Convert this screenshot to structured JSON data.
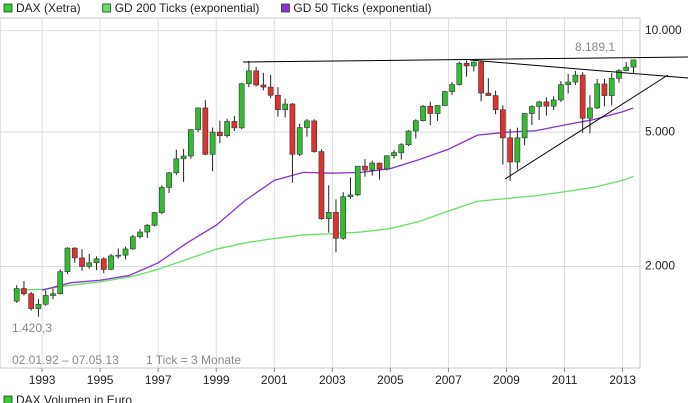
{
  "chart_data": {
    "type": "candlestick",
    "scale": "log",
    "grid": true,
    "xlim": [
      1991.55,
      2013.6
    ],
    "xticks": [
      1993,
      1995,
      1997,
      1999,
      2001,
      2003,
      2005,
      2007,
      2009,
      2011,
      2013
    ],
    "ylim": [
      1000,
      10900
    ],
    "yticks": [
      {
        "value": 2000,
        "label": "2.000"
      },
      {
        "value": 5000,
        "label": "5.000"
      },
      {
        "value": 10000,
        "label": "10.000"
      }
    ],
    "annotations": {
      "last": "8.189,1",
      "low": "1.420,3",
      "range": "02.01.92 – 07.05.13",
      "tick": "1 Tick = 3 Monate"
    },
    "footer_legend": {
      "name": "DAX Volumen in Euro",
      "color": "#33cc33"
    },
    "x": [
      1992.125,
      1992.375,
      1992.625,
      1992.875,
      1993.125,
      1993.375,
      1993.625,
      1993.875,
      1994.125,
      1994.375,
      1994.625,
      1994.875,
      1995.125,
      1995.375,
      1995.625,
      1995.875,
      1996.125,
      1996.375,
      1996.625,
      1996.875,
      1997.125,
      1997.375,
      1997.625,
      1997.875,
      1998.125,
      1998.375,
      1998.625,
      1998.875,
      1999.125,
      1999.375,
      1999.625,
      1999.875,
      2000.125,
      2000.375,
      2000.625,
      2000.875,
      2001.125,
      2001.375,
      2001.625,
      2001.875,
      2002.125,
      2002.375,
      2002.625,
      2002.875,
      2003.125,
      2003.375,
      2003.625,
      2003.875,
      2004.125,
      2004.375,
      2004.625,
      2004.875,
      2005.125,
      2005.375,
      2005.625,
      2005.875,
      2006.125,
      2006.375,
      2006.625,
      2006.875,
      2007.125,
      2007.375,
      2007.625,
      2007.875,
      2008.125,
      2008.375,
      2008.625,
      2008.875,
      2009.125,
      2009.375,
      2009.625,
      2009.875,
      2010.125,
      2010.375,
      2010.625,
      2010.875,
      2011.125,
      2011.375,
      2011.625,
      2011.875,
      2012.125,
      2012.375,
      2012.625,
      2012.875,
      2013.125,
      2013.375
    ],
    "series": [
      {
        "name": "DAX (Xetra)",
        "color": "#33cc33",
        "up_color": "#33bb33",
        "down_color": "#dd3333",
        "open": [
          1578,
          1720,
          1660,
          1500,
          1545,
          1640,
          1660,
          1930,
          2267,
          2120,
          2000,
          2050,
          2107,
          1960,
          2150,
          2160,
          2254,
          2450,
          2530,
          2650,
          2889,
          3430,
          3790,
          4170,
          4250,
          5090,
          5900,
          4300,
          5002,
          4880,
          5380,
          5150,
          6958,
          7600,
          6900,
          6800,
          6434,
          5830,
          6060,
          4300,
          5160,
          5400,
          4380,
          2770,
          2893,
          2424,
          3220,
          3260,
          3965,
          3860,
          4050,
          3890,
          4256,
          4350,
          4590,
          5040,
          5408,
          5970,
          5680,
          6000,
          6597,
          6920,
          8000,
          7860,
          8067,
          6530,
          6420,
          5830,
          4810,
          4080,
          4810,
          5680,
          5957,
          6150,
          5970,
          6230,
          6914,
          7040,
          7380,
          5500,
          5898,
          6950,
          6420,
          7220,
          7612,
          7795
        ],
        "high": [
          1760,
          1810,
          1680,
          1600,
          1700,
          1720,
          1960,
          2280,
          2280,
          2250,
          2180,
          2140,
          2130,
          2180,
          2260,
          2290,
          2480,
          2580,
          2670,
          2900,
          3480,
          3810,
          4440,
          4460,
          5100,
          5910,
          6220,
          5160,
          5410,
          5480,
          5580,
          7000,
          8136,
          7810,
          7490,
          7400,
          6800,
          6290,
          6100,
          5300,
          5470,
          5460,
          4450,
          3480,
          3160,
          3320,
          3670,
          3970,
          4160,
          4120,
          4060,
          4270,
          4430,
          4640,
          5070,
          5460,
          6020,
          6160,
          6010,
          6630,
          7040,
          8090,
          8151,
          8110,
          8100,
          7230,
          6640,
          6000,
          5110,
          5160,
          5700,
          6010,
          6190,
          6340,
          6390,
          7090,
          7440,
          7600,
          7530,
          6430,
          7190,
          7200,
          7480,
          7680,
          8070,
          8189.1
        ],
        "low": [
          1560,
          1640,
          1480,
          1420.3,
          1530,
          1600,
          1650,
          1900,
          2050,
          1940,
          1970,
          1950,
          1910,
          1950,
          2110,
          2100,
          2240,
          2420,
          2430,
          2630,
          2860,
          3300,
          3730,
          3560,
          4170,
          5000,
          4270,
          3830,
          4640,
          4820,
          5040,
          5110,
          6800,
          6830,
          6650,
          6300,
          5560,
          5530,
          3540,
          4250,
          4850,
          4350,
          2750,
          2520,
          2203,
          2400,
          3170,
          3230,
          3690,
          3720,
          3620,
          3850,
          4180,
          4150,
          4550,
          4790,
          5380,
          5240,
          5400,
          5970,
          6440,
          6880,
          7300,
          7570,
          6170,
          6420,
          5650,
          4010,
          3588,
          3870,
          4570,
          5250,
          5430,
          5600,
          5820,
          6150,
          6510,
          6900,
          4970,
          4960,
          5860,
          5970,
          6000,
          7010,
          7580,
          7450
        ],
        "close": [
          1720,
          1660,
          1500,
          1545,
          1640,
          1660,
          1930,
          2267,
          2120,
          2000,
          2050,
          2107,
          1960,
          2150,
          2160,
          2254,
          2450,
          2530,
          2650,
          2889,
          3430,
          3790,
          4170,
          4250,
          5090,
          5900,
          4300,
          5002,
          4880,
          5380,
          5150,
          6958,
          7600,
          6900,
          6800,
          6434,
          5830,
          6060,
          4300,
          5160,
          5400,
          4380,
          2770,
          2893,
          2424,
          3220,
          3260,
          3965,
          3860,
          4050,
          3890,
          4256,
          4350,
          4590,
          5040,
          5408,
          5970,
          5680,
          6000,
          6597,
          6920,
          8000,
          7860,
          8067,
          6530,
          6420,
          5830,
          4810,
          4080,
          4810,
          5680,
          5957,
          6150,
          5970,
          6230,
          6914,
          7040,
          7380,
          5500,
          5898,
          6950,
          6420,
          7220,
          7612,
          7795,
          8189.1
        ]
      },
      {
        "name": "GD 200 Ticks (exponential)",
        "color": "#66e066",
        "x": [
          1992,
          1993,
          1994,
          1995,
          1996,
          1997,
          1998,
          1999,
          2000,
          2001,
          2002,
          2003,
          2004,
          2005,
          2006,
          2007,
          2008,
          2009,
          2010,
          2011,
          2012,
          2013,
          2013.375
        ],
        "values": [
          1700,
          1710,
          1760,
          1800,
          1860,
          1960,
          2100,
          2250,
          2350,
          2420,
          2480,
          2500,
          2530,
          2590,
          2720,
          2920,
          3120,
          3180,
          3240,
          3330,
          3430,
          3600,
          3700
        ]
      },
      {
        "name": "GD 50 Ticks (exponential)",
        "color": "#8833cc",
        "x": [
          1992,
          1993,
          1994,
          1995,
          1996,
          1997,
          1998,
          1999,
          2000,
          2001,
          2002,
          2003,
          2004,
          2005,
          2006,
          2007,
          2008,
          2009,
          2010,
          2011,
          2012,
          2013,
          2013.375
        ],
        "values": [
          null,
          1700,
          1790,
          1820,
          1880,
          2050,
          2350,
          2650,
          3140,
          3600,
          3800,
          3780,
          3800,
          3900,
          4150,
          4450,
          4900,
          5000,
          5050,
          5250,
          5450,
          5750,
          5900
        ]
      }
    ]
  }
}
